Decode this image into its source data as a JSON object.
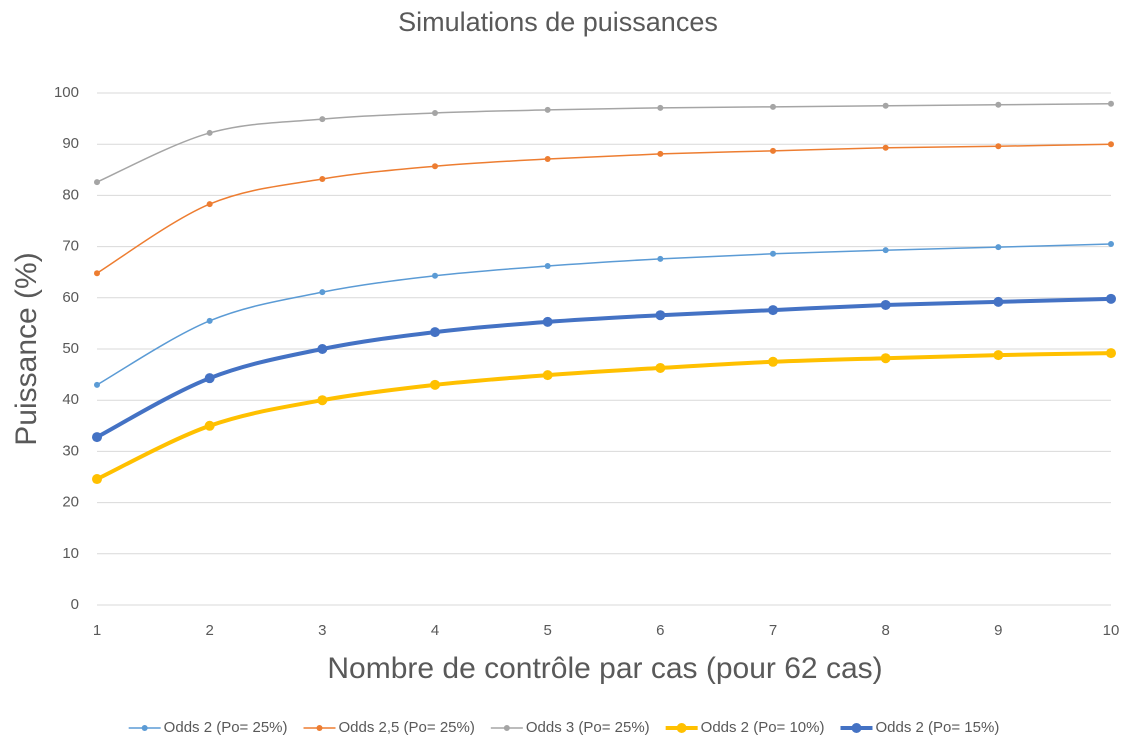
{
  "chart_data": {
    "type": "line",
    "title": "Simulations de puissances",
    "x_label": "Nombre de contrôle par cas (pour 62 cas)",
    "y_label": "Puissance (%)",
    "x": [
      1,
      2,
      3,
      4,
      5,
      6,
      7,
      8,
      9,
      10
    ],
    "xlim": [
      1,
      10
    ],
    "xticks": [
      1,
      2,
      3,
      4,
      5,
      6,
      7,
      8,
      9,
      10
    ],
    "ylim": [
      0,
      100
    ],
    "yticks": [
      0,
      10,
      20,
      30,
      40,
      50,
      60,
      70,
      80,
      90,
      100
    ],
    "grid": true,
    "smooth": true,
    "legend": "bottom",
    "series": [
      {
        "name": "Odds 2 (Po= 25%)",
        "color": "#5b9bd5",
        "line_width": 1.5,
        "values": [
          43.0,
          55.5,
          61.1,
          64.3,
          66.2,
          67.6,
          68.6,
          69.3,
          69.9,
          70.5
        ]
      },
      {
        "name": "Odds 2,5 (Po= 25%)",
        "color": "#ed7d31",
        "line_width": 1.5,
        "values": [
          64.8,
          78.3,
          83.2,
          85.7,
          87.1,
          88.1,
          88.7,
          89.3,
          89.6,
          90.0
        ]
      },
      {
        "name": "Odds 3 (Po= 25%)",
        "color": "#a5a5a5",
        "line_width": 1.5,
        "values": [
          82.6,
          92.2,
          94.9,
          96.1,
          96.7,
          97.1,
          97.3,
          97.5,
          97.7,
          97.9
        ]
      },
      {
        "name": "Odds 2 (Po= 10%)",
        "color": "#ffc000",
        "line_width": 4,
        "values": [
          24.6,
          35.0,
          40.0,
          43.0,
          44.9,
          46.3,
          47.5,
          48.2,
          48.8,
          49.2
        ]
      },
      {
        "name": "Odds 2 (Po= 15%)",
        "color": "#4472c4",
        "line_width": 4,
        "values": [
          32.8,
          44.3,
          50.0,
          53.3,
          55.3,
          56.6,
          57.6,
          58.6,
          59.2,
          59.8
        ]
      }
    ]
  }
}
